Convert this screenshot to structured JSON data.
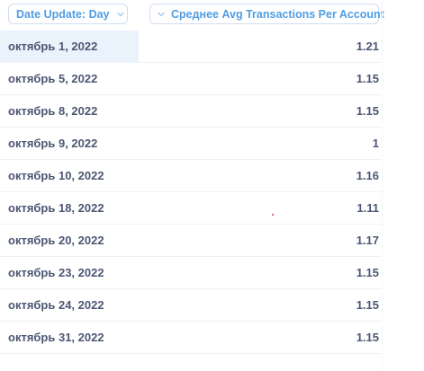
{
  "header": {
    "date_column_label": "Date Update: Day",
    "value_column_label": "Среднее Avg Transactions Per Account"
  },
  "rows": [
    {
      "date": "октябрь 1, 2022",
      "value": "1.21"
    },
    {
      "date": "октябрь 5, 2022",
      "value": "1.15"
    },
    {
      "date": "октябрь 8, 2022",
      "value": "1.15"
    },
    {
      "date": "октябрь 9, 2022",
      "value": "1"
    },
    {
      "date": "октябрь 10, 2022",
      "value": "1.16"
    },
    {
      "date": "октябрь 18, 2022",
      "value": "1.11"
    },
    {
      "date": "октябрь 20, 2022",
      "value": "1.17"
    },
    {
      "date": "октябрь 23, 2022",
      "value": "1.15"
    },
    {
      "date": "октябрь 24, 2022",
      "value": "1.15"
    },
    {
      "date": "октябрь 31, 2022",
      "value": "1.15"
    }
  ],
  "colors": {
    "accent": "#509ee3",
    "text": "#4c5773",
    "row_highlight": "#eaf2fc",
    "border": "#eef1f5"
  },
  "icons": {
    "header_sort": "chevron-down-icon"
  }
}
